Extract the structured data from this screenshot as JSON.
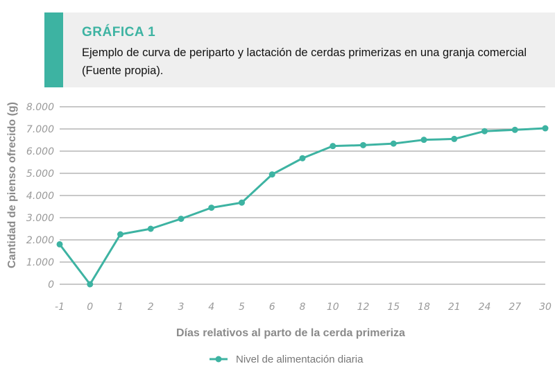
{
  "header": {
    "label": "GRÁFICA 1",
    "title": "Ejemplo de curva de periparto y lactación de cerdas primerizas en una granja comercial (Fuente propia).",
    "accent_color": "#3db3a2",
    "background_color": "#efefef"
  },
  "chart_data": {
    "type": "line",
    "categories": [
      "-1",
      "0",
      "1",
      "2",
      "3",
      "4",
      "5",
      "6",
      "8",
      "10",
      "12",
      "15",
      "18",
      "21",
      "24",
      "27",
      "30"
    ],
    "series": [
      {
        "name": "Nivel de alimentación diaria",
        "color": "#3db3a2",
        "values": [
          1800,
          0,
          2250,
          2500,
          2950,
          3450,
          3680,
          4950,
          5680,
          6230,
          6270,
          6340,
          6510,
          6550,
          6900,
          6960,
          7030
        ]
      }
    ],
    "xlabel": "Días relativos al parto de la cerda primeriza",
    "ylabel": "Cantidad de pienso ofrecido (g)",
    "ylim": [
      0,
      8000
    ],
    "yticks": [
      0,
      1000,
      2000,
      3000,
      4000,
      5000,
      6000,
      7000,
      8000
    ],
    "ytick_labels": [
      "0",
      "1.000",
      "2.000",
      "3.000",
      "4.000",
      "5.000",
      "6.000",
      "7.000",
      "8.000"
    ],
    "grid": true,
    "legend_position": "bottom"
  }
}
